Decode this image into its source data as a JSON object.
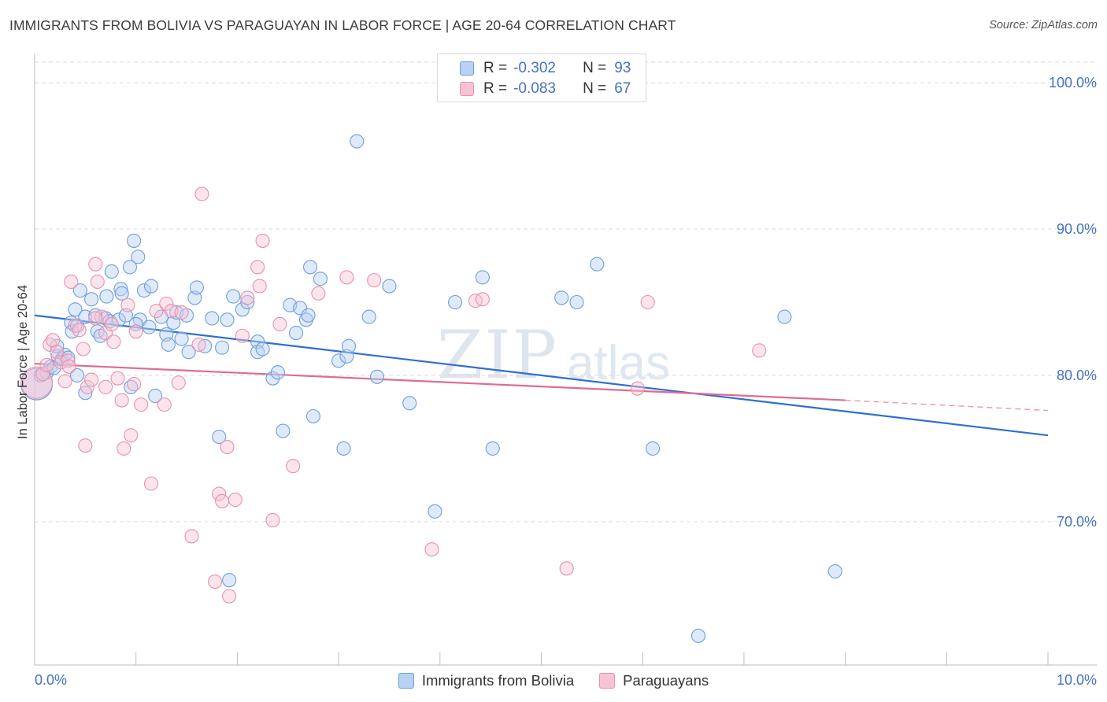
{
  "title": "IMMIGRANTS FROM BOLIVIA VS PARAGUAYAN IN LABOR FORCE | AGE 20-64 CORRELATION CHART",
  "source": "Source: ZipAtlas.com",
  "watermark": {
    "zip": "ZIP",
    "atlas": "atlas"
  },
  "legend": {
    "rows": [
      {
        "r_label": "R =",
        "r_value": "-0.302",
        "n_label": "N =",
        "n_value": "93"
      },
      {
        "r_label": "R =",
        "r_value": "-0.083",
        "n_label": "N =",
        "n_value": "67"
      }
    ]
  },
  "bottom_legend": [
    "Immigrants from Bolivia",
    "Paraguayans"
  ],
  "colors": {
    "bolivia_fill": "#b9d1f2",
    "bolivia_stroke": "#6d9ee0",
    "bolivia_line": "#2f6fd0",
    "paraguay_fill": "#f7c3d4",
    "paraguay_stroke": "#e891ad",
    "paraguay_line": "#e06a94",
    "tick_text": "#4472c4",
    "grid": "#dcdcdc"
  },
  "chart_data": {
    "type": "scatter",
    "title": "IMMIGRANTS FROM BOLIVIA VS PARAGUAYAN IN LABOR FORCE | AGE 20-64 CORRELATION CHART",
    "xlabel": "",
    "ylabel": "In Labor Force | Age 20-64",
    "xlim": [
      0,
      10
    ],
    "ylim": [
      60.2,
      102
    ],
    "x_tick_labels": [
      "0.0%",
      "10.0%"
    ],
    "y_ticks": [
      70,
      80,
      90,
      100
    ],
    "y_tick_labels": [
      "70.0%",
      "80.0%",
      "90.0%",
      "100.0%"
    ],
    "grid": "horizontal dashed",
    "legend_position": "top-center",
    "series": [
      {
        "name": "Immigrants from Bolivia",
        "R": -0.302,
        "N": 93,
        "trend": {
          "x": [
            0,
            10
          ],
          "y": [
            84.1,
            75.9
          ]
        },
        "points": [
          [
            0.02,
            79.4,
            "L"
          ],
          [
            0.06,
            80.0
          ],
          [
            0.12,
            80.2
          ],
          [
            0.16,
            80.6
          ],
          [
            0.19,
            80.5
          ],
          [
            0.23,
            81.3
          ],
          [
            0.27,
            81.1
          ],
          [
            0.3,
            81.4
          ],
          [
            0.22,
            82.0
          ],
          [
            0.36,
            83.6
          ],
          [
            0.37,
            83.0
          ],
          [
            0.4,
            84.5
          ],
          [
            0.42,
            83.4
          ],
          [
            0.45,
            85.8
          ],
          [
            0.5,
            84.0
          ],
          [
            0.56,
            85.2
          ],
          [
            0.6,
            84.1
          ],
          [
            0.62,
            83.0
          ],
          [
            0.65,
            82.7
          ],
          [
            0.7,
            83.9
          ],
          [
            0.71,
            85.4
          ],
          [
            0.74,
            83.7
          ],
          [
            0.76,
            87.1
          ],
          [
            0.83,
            83.8
          ],
          [
            0.85,
            85.9
          ],
          [
            0.86,
            85.6
          ],
          [
            0.9,
            84.1
          ],
          [
            0.94,
            87.4
          ],
          [
            0.98,
            89.2
          ],
          [
            1.02,
            88.1
          ],
          [
            1.04,
            83.8
          ],
          [
            1.08,
            85.8
          ],
          [
            1.13,
            83.3
          ],
          [
            1.15,
            86.1
          ],
          [
            1.19,
            78.6
          ],
          [
            1.25,
            84.0
          ],
          [
            1.3,
            82.8
          ],
          [
            1.32,
            82.1
          ],
          [
            1.37,
            83.6
          ],
          [
            1.4,
            84.3
          ],
          [
            1.5,
            84.1
          ],
          [
            1.52,
            81.6
          ],
          [
            1.58,
            85.3
          ],
          [
            1.6,
            86.0
          ],
          [
            1.68,
            82.0
          ],
          [
            1.75,
            83.9
          ],
          [
            1.82,
            75.8
          ],
          [
            1.85,
            81.9
          ],
          [
            1.9,
            83.8
          ],
          [
            1.96,
            85.4
          ],
          [
            2.05,
            84.5
          ],
          [
            2.1,
            85.0
          ],
          [
            2.2,
            82.3
          ],
          [
            2.2,
            81.6
          ],
          [
            2.25,
            81.8
          ],
          [
            2.35,
            79.8
          ],
          [
            2.4,
            80.2
          ],
          [
            2.45,
            76.2
          ],
          [
            2.52,
            84.8
          ],
          [
            2.58,
            82.9
          ],
          [
            2.62,
            84.6
          ],
          [
            2.68,
            83.8
          ],
          [
            2.7,
            84.1
          ],
          [
            2.72,
            87.4
          ],
          [
            2.75,
            77.2
          ],
          [
            2.82,
            86.6
          ],
          [
            3.0,
            81.0
          ],
          [
            3.05,
            75.0
          ],
          [
            3.08,
            81.3
          ],
          [
            3.1,
            82.0
          ],
          [
            3.18,
            96.0
          ],
          [
            3.3,
            84.0
          ],
          [
            3.38,
            79.9
          ],
          [
            3.5,
            86.1
          ],
          [
            3.7,
            78.1
          ],
          [
            3.95,
            70.7
          ],
          [
            4.15,
            85.0
          ],
          [
            4.42,
            86.7
          ],
          [
            4.52,
            75.0
          ],
          [
            5.2,
            85.3
          ],
          [
            5.35,
            85.0
          ],
          [
            5.55,
            87.6
          ],
          [
            6.1,
            75.0
          ],
          [
            6.55,
            62.2
          ],
          [
            7.4,
            84.0
          ],
          [
            7.9,
            66.6
          ],
          [
            1.92,
            66.0
          ],
          [
            0.95,
            79.2
          ],
          [
            0.5,
            78.8
          ],
          [
            0.42,
            80.0
          ],
          [
            1.0,
            83.5
          ],
          [
            1.45,
            82.5
          ],
          [
            0.33,
            81.2
          ]
        ]
      },
      {
        "name": "Paraguayans",
        "R": -0.083,
        "N": 67,
        "trend": {
          "x": [
            0,
            8
          ],
          "y": [
            80.8,
            78.3
          ]
        },
        "dashed_extension": {
          "x": [
            8,
            10
          ],
          "y": [
            78.3,
            77.6
          ]
        },
        "points": [
          [
            0.02,
            79.5,
            "L"
          ],
          [
            0.08,
            80.1
          ],
          [
            0.12,
            80.7
          ],
          [
            0.15,
            82.1
          ],
          [
            0.18,
            82.4
          ],
          [
            0.22,
            81.6
          ],
          [
            0.26,
            80.9
          ],
          [
            0.3,
            79.6
          ],
          [
            0.33,
            81.0
          ],
          [
            0.36,
            86.4
          ],
          [
            0.4,
            83.4
          ],
          [
            0.44,
            83.1
          ],
          [
            0.48,
            81.8
          ],
          [
            0.52,
            79.2
          ],
          [
            0.56,
            79.7
          ],
          [
            0.6,
            87.6
          ],
          [
            0.62,
            86.4
          ],
          [
            0.66,
            84.0
          ],
          [
            0.7,
            82.9
          ],
          [
            0.76,
            83.5
          ],
          [
            0.78,
            82.3
          ],
          [
            0.82,
            79.8
          ],
          [
            0.86,
            78.3
          ],
          [
            0.88,
            75.0
          ],
          [
            0.92,
            84.8
          ],
          [
            0.95,
            75.9
          ],
          [
            0.98,
            79.4
          ],
          [
            1.05,
            78.0
          ],
          [
            1.15,
            72.6
          ],
          [
            1.2,
            84.4
          ],
          [
            1.28,
            78.0
          ],
          [
            1.3,
            84.9
          ],
          [
            1.35,
            84.4
          ],
          [
            1.42,
            79.5
          ],
          [
            1.45,
            84.3
          ],
          [
            1.55,
            69.0
          ],
          [
            1.62,
            82.1
          ],
          [
            1.65,
            92.4
          ],
          [
            1.78,
            65.9
          ],
          [
            1.82,
            71.9
          ],
          [
            1.85,
            71.4
          ],
          [
            1.9,
            75.1
          ],
          [
            1.92,
            64.9
          ],
          [
            1.98,
            71.5
          ],
          [
            2.05,
            82.7
          ],
          [
            2.1,
            85.3
          ],
          [
            2.2,
            87.4
          ],
          [
            2.22,
            86.1
          ],
          [
            2.25,
            89.2
          ],
          [
            2.35,
            70.1
          ],
          [
            2.42,
            83.5
          ],
          [
            2.55,
            73.8
          ],
          [
            2.8,
            85.6
          ],
          [
            3.08,
            86.7
          ],
          [
            3.35,
            86.5
          ],
          [
            3.92,
            68.1
          ],
          [
            4.35,
            85.1
          ],
          [
            4.42,
            85.2
          ],
          [
            5.25,
            66.8
          ],
          [
            5.95,
            79.1
          ],
          [
            6.05,
            85.0
          ],
          [
            7.15,
            81.7
          ],
          [
            0.5,
            75.2
          ],
          [
            0.6,
            83.9
          ],
          [
            0.34,
            80.6
          ],
          [
            0.7,
            79.2
          ],
          [
            1.0,
            83.0
          ]
        ]
      }
    ]
  }
}
